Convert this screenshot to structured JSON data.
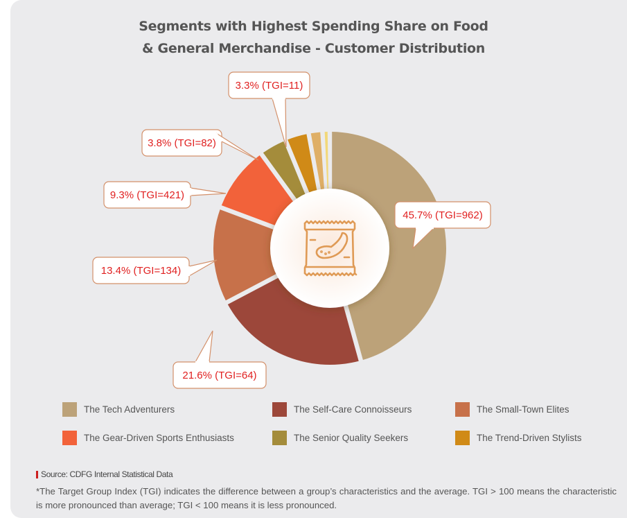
{
  "title_line1": "Segments with Highest Spending Share on Food",
  "title_line2": "& General Merchandise - Customer Distribution",
  "center_icon": "snack-bag-icon",
  "chart_data": {
    "type": "pie",
    "variant": "donut",
    "title": "Segments with Highest Spending Share on Food & General Merchandise - Customer Distribution",
    "unit": "%",
    "start_angle_deg": 0,
    "direction": "clockwise",
    "slices": [
      {
        "name": "The Tech Adventurers",
        "value": 45.7,
        "tgi": 962,
        "label": "45.7% (TGI=962)",
        "color": "#bca279"
      },
      {
        "name": "The Self-Care Connoisseurs",
        "value": 21.6,
        "tgi": 64,
        "label": "21.6% (TGI=64)",
        "color": "#9c473a"
      },
      {
        "name": "The Small-Town Elites",
        "value": 13.4,
        "tgi": 134,
        "label": "13.4% (TGI=134)",
        "color": "#c7714a"
      },
      {
        "name": "The Gear-Driven Sports Enthusiasts",
        "value": 9.3,
        "tgi": 421,
        "label": "9.3% (TGI=421)",
        "color": "#f2623a"
      },
      {
        "name": "The Senior Quality Seekers",
        "value": 3.8,
        "tgi": 82,
        "label": "3.8% (TGI=82)",
        "color": "#a48c3b"
      },
      {
        "name": "The Trend-Driven Stylists",
        "value": 3.3,
        "tgi": 11,
        "label": "3.3% (TGI=11)",
        "color": "#d08a17"
      },
      {
        "name": "",
        "value": 1.9,
        "tgi": null,
        "label": "",
        "color": "#dfaf66"
      },
      {
        "name": "",
        "value": 1.0,
        "tgi": null,
        "label": "",
        "color": "#f2d87a"
      }
    ],
    "legend": [
      {
        "label": "The Tech Adventurers",
        "color": "#bca279"
      },
      {
        "label": "The Self-Care Connoisseurs",
        "color": "#9c473a"
      },
      {
        "label": "The Small-Town Elites",
        "color": "#c7714a"
      },
      {
        "label": "The Gear-Driven Sports Enthusiasts",
        "color": "#f2623a"
      },
      {
        "label": "The Senior Quality Seekers",
        "color": "#a48c3b"
      },
      {
        "label": "The Trend-Driven Stylists",
        "color": "#d08a17"
      }
    ],
    "legend_position": "bottom"
  },
  "source": "Source: CDFG Internal Statistical Data",
  "footnote": "*The Target Group Index (TGI) indicates the difference between a group’s characteristics and the average. TGI > 100 means the characteristic is more pronounced than average; TGI < 100 means it is less pronounced."
}
